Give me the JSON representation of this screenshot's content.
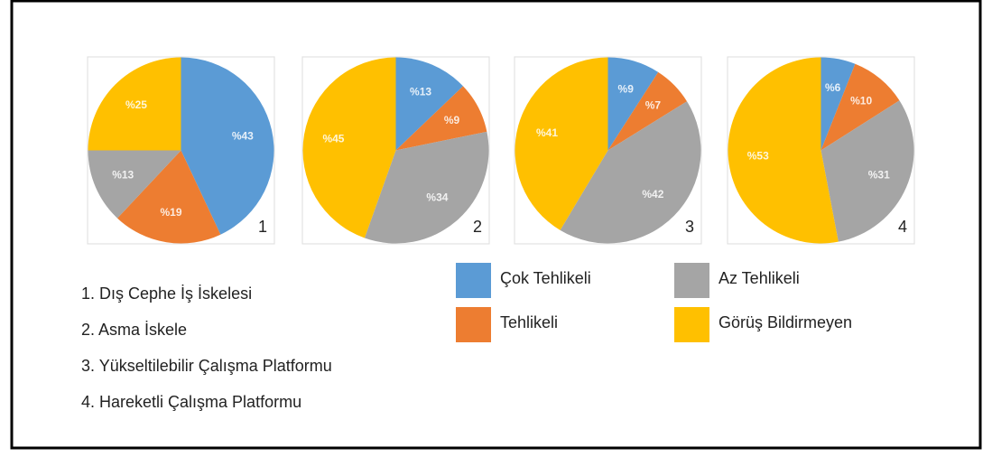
{
  "chart_data": [
    {
      "type": "pie",
      "label": "1",
      "categories": [
        "Çok Tehlikeli",
        "Tehlikeli",
        "Az Tehlikeli",
        "Görüş Bildirmeyen"
      ],
      "values": [
        43,
        19,
        13,
        25
      ],
      "value_labels": [
        "%43",
        "%19",
        "%13",
        "%25"
      ],
      "colors": [
        "#5b9bd5",
        "#ed7d31",
        "#a5a5a5",
        "#ffc000"
      ]
    },
    {
      "type": "pie",
      "label": "2",
      "categories": [
        "Çok Tehlikeli",
        "Tehlikeli",
        "Az Tehlikeli",
        "Görüş Bildirmeyen"
      ],
      "values": [
        13,
        9,
        34,
        45
      ],
      "value_labels": [
        "%13",
        "%9",
        "%34",
        "%45"
      ],
      "colors": [
        "#5b9bd5",
        "#ed7d31",
        "#a5a5a5",
        "#ffc000"
      ]
    },
    {
      "type": "pie",
      "label": "3",
      "categories": [
        "Çok Tehlikeli",
        "Tehlikeli",
        "Az Tehlikeli",
        "Görüş Bildirmeyen"
      ],
      "values": [
        9,
        7,
        42,
        41
      ],
      "value_labels": [
        "%9",
        "%7",
        "%42",
        "%41"
      ],
      "colors": [
        "#5b9bd5",
        "#ed7d31",
        "#a5a5a5",
        "#ffc000"
      ]
    },
    {
      "type": "pie",
      "label": "4",
      "categories": [
        "Çok Tehlikeli",
        "Tehlikeli",
        "Az Tehlikeli",
        "Görüş Bildirmeyen"
      ],
      "values": [
        6,
        10,
        31,
        53
      ],
      "value_labels": [
        "%6",
        "%10",
        "%31",
        "%53"
      ],
      "colors": [
        "#5b9bd5",
        "#ed7d31",
        "#a5a5a5",
        "#ffc000"
      ]
    }
  ],
  "captions": [
    "1. Dış Cephe İş İskelesi",
    "2. Asma İskele",
    "3. Yükseltilebilir Çalışma Platformu",
    "4. Hareketli Çalışma Platformu"
  ]
}
